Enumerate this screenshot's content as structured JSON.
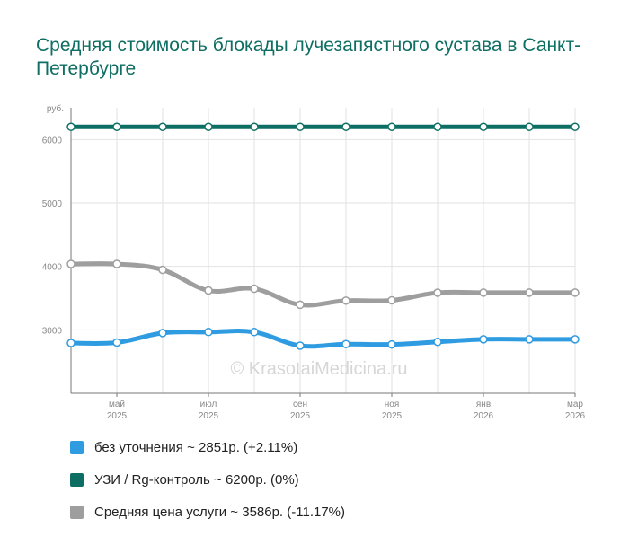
{
  "chart_data": {
    "type": "line",
    "title": "Средняя стоимость блокады лучезапястного сустава в Санкт-Петербурге",
    "ylabel": "руб.",
    "ylim": [
      2000,
      6500
    ],
    "yticks": [
      3000,
      4000,
      5000,
      6000
    ],
    "x_ticks": [
      {
        "month": "май",
        "year": "2025"
      },
      {
        "month": "июл",
        "year": "2025"
      },
      {
        "month": "сен",
        "year": "2025"
      },
      {
        "month": "ноя",
        "year": "2025"
      },
      {
        "month": "янв",
        "year": "2026"
      },
      {
        "month": "мар",
        "year": "2026"
      }
    ],
    "series": [
      {
        "name": "УЗИ / Rg-контроль",
        "color": "#0d6f63",
        "values": [
          6200,
          6200,
          6200,
          6200,
          6200,
          6200,
          6200,
          6200,
          6200,
          6200,
          6200,
          6200
        ]
      },
      {
        "name": "Средняя цена услуги",
        "color": "#9e9e9e",
        "values": [
          4037,
          4037,
          3945,
          3620,
          3648,
          3395,
          3460,
          3465,
          3585,
          3586,
          3586,
          3586
        ]
      },
      {
        "name": "без уточнения",
        "color": "#2f9be0",
        "values": [
          2792,
          2800,
          2950,
          2965,
          2965,
          2750,
          2775,
          2770,
          2810,
          2851,
          2851,
          2851
        ]
      }
    ]
  },
  "watermark": "© KrasotaiMedicina.ru",
  "legend": [
    {
      "label": "без уточнения ~ 2851р. (+2.11%)",
      "color": "#2f9be0"
    },
    {
      "label": "УЗИ / Rg-контроль ~ 6200р. (0%)",
      "color": "#0d6f63"
    },
    {
      "label": "Средняя цена услуги ~ 3586р. (-11.17%)",
      "color": "#9e9e9e"
    }
  ]
}
